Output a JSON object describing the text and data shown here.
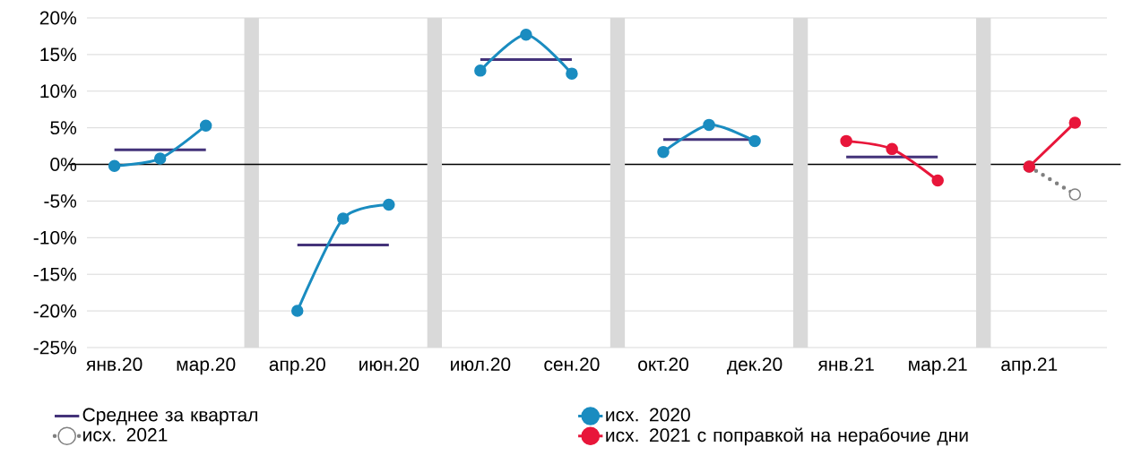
{
  "chart_data": {
    "type": "line",
    "categories": [
      "янв.20",
      null,
      "мар.20",
      null,
      "апр.20",
      null,
      "июн.20",
      null,
      "июл.20",
      null,
      "сен.20",
      null,
      "окт.20",
      null,
      "дек.20",
      null,
      "янв.21",
      null,
      "мар.21",
      null,
      "апр.21",
      null
    ],
    "series": [
      {
        "type": "bar",
        "color": "#d9d9d9",
        "values": [
          null,
          null,
          null,
          45,
          null,
          null,
          null,
          45,
          null,
          null,
          null,
          45,
          null,
          null,
          null,
          45,
          null,
          null,
          null,
          45,
          null,
          null
        ],
        "base": [
          null,
          null,
          null,
          -25,
          null,
          null,
          null,
          -25,
          null,
          null,
          null,
          -25,
          null,
          null,
          null,
          -25,
          null,
          null,
          null,
          -25,
          null,
          null
        ]
      },
      {
        "name": "Среднее за квартал",
        "color": "#44337a",
        "marker": "none",
        "line_style": "solid",
        "values": [
          2.0,
          2.0,
          2.0,
          null,
          -11.0,
          -11.0,
          -11.0,
          null,
          14.3,
          14.3,
          14.3,
          null,
          3.4,
          3.4,
          3.4,
          null,
          1.0,
          1.0,
          1.0,
          null,
          null,
          null
        ]
      },
      {
        "name": "исх. 2020",
        "color": "#1a8cc0",
        "marker": "circle",
        "line_style": "solid",
        "values": [
          -0.2,
          0.8,
          5.3,
          null,
          -20.0,
          -7.4,
          -5.5,
          null,
          12.8,
          17.7,
          12.4,
          null,
          1.7,
          5.4,
          3.2,
          null,
          null,
          null,
          null,
          null,
          null,
          null
        ]
      },
      {
        "name": "исх. 2021",
        "color": "#808080",
        "marker": "circle",
        "line_style": "dotted",
        "values": [
          null,
          null,
          null,
          null,
          null,
          null,
          null,
          null,
          null,
          null,
          null,
          null,
          null,
          null,
          null,
          null,
          null,
          null,
          null,
          null,
          -0.3,
          -4.1
        ]
      },
      {
        "name": "исх. 2021 с поправкой на нерабочие дни",
        "color": "#e8163a",
        "marker": "circle",
        "line_style": "solid",
        "values": [
          null,
          null,
          null,
          null,
          null,
          null,
          null,
          null,
          null,
          null,
          null,
          null,
          null,
          null,
          null,
          null,
          3.2,
          2.1,
          -2.2,
          null,
          -0.3,
          5.7
        ]
      }
    ],
    "ylim": [
      -25,
      20
    ],
    "yticks": [
      {
        "value": -25,
        "label": "-25%"
      },
      {
        "value": -20,
        "label": "-20%"
      },
      {
        "value": -15,
        "label": "-15%"
      },
      {
        "value": -10,
        "label": "-10%"
      },
      {
        "value": -5,
        "label": "-5%"
      },
      {
        "value": 0,
        "label": "0%"
      },
      {
        "value": 5,
        "label": "5%"
      },
      {
        "value": 10,
        "label": "10%"
      },
      {
        "value": 15,
        "label": "15%"
      },
      {
        "value": 20,
        "label": "20%"
      }
    ],
    "grid": "y",
    "legend": "bottom",
    "ref_lines": [
      {
        "axis": "y",
        "value": 0,
        "color": "#000000"
      }
    ]
  }
}
